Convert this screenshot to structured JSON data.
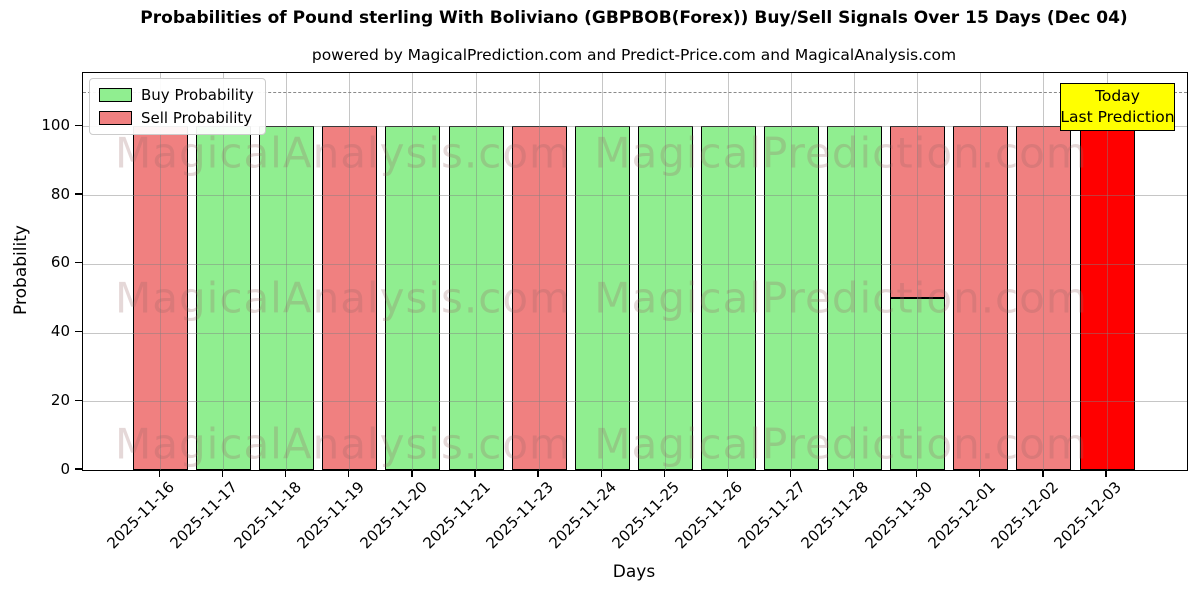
{
  "page": {
    "title": "Probabilities of Pound sterling With Boliviano (GBPBOB(Forex)) Buy/Sell Signals Over 15 Days (Dec 04)",
    "subtitle": "powered by MagicalPrediction.com and Predict-Price.com and MagicalAnalysis.com"
  },
  "legend": {
    "items": [
      {
        "label": "Buy Probability",
        "color": "#90ee90"
      },
      {
        "label": "Sell Probability",
        "color": "#f08080"
      }
    ]
  },
  "annotation": {
    "line1": "Today",
    "line2": "Last Prediction",
    "bg": "#ffff00"
  },
  "axes": {
    "xlabel": "Days",
    "ylabel": "Probability",
    "yticks": [
      0,
      20,
      40,
      60,
      80,
      100
    ]
  },
  "watermark": {
    "left_text": "MagicalAnalysis.com",
    "right_text": "MagicalPrediction.com",
    "color": "rgba(150,100,100,0.25)"
  },
  "chart_data": {
    "type": "bar",
    "stacked": true,
    "title": "Probabilities of Pound sterling With Boliviano (GBPBOB(Forex)) Buy/Sell Signals Over 15 Days (Dec 04)",
    "xlabel": "Days",
    "ylabel": "Probability",
    "ylim": [
      0,
      115.5
    ],
    "yticks": [
      0,
      20,
      40,
      60,
      80,
      100
    ],
    "dashed_line_y": 110,
    "grid": true,
    "legend_position": "upper left",
    "categories": [
      "2025-11-16",
      "2025-11-17",
      "2025-11-18",
      "2025-11-19",
      "2025-11-20",
      "2025-11-21",
      "2025-11-23",
      "2025-11-24",
      "2025-11-25",
      "2025-11-26",
      "2025-11-27",
      "2025-11-28",
      "2025-11-30",
      "2025-12-01",
      "2025-12-02",
      "2025-12-03"
    ],
    "series": [
      {
        "name": "Buy Probability",
        "color": "#90ee90",
        "values": [
          0,
          100,
          100,
          0,
          100,
          100,
          0,
          100,
          100,
          100,
          100,
          100,
          50,
          0,
          0,
          0
        ]
      },
      {
        "name": "Sell Probability",
        "color": "#f08080",
        "values": [
          100,
          0,
          0,
          100,
          0,
          0,
          100,
          0,
          0,
          0,
          0,
          0,
          50,
          100,
          100,
          100
        ]
      }
    ],
    "today_bar": {
      "category": "2025-12-03",
      "index": 15,
      "value": 100,
      "color": "#ff0000"
    },
    "grid_color": "#b0b0b0"
  }
}
